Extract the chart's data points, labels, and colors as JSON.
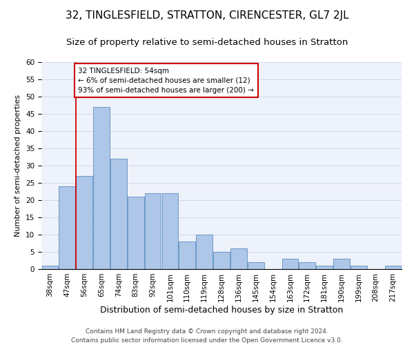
{
  "title": "32, TINGLESFIELD, STRATTON, CIRENCESTER, GL7 2JL",
  "subtitle": "Size of property relative to semi-detached houses in Stratton",
  "xlabel": "Distribution of semi-detached houses by size in Stratton",
  "ylabel": "Number of semi-detached properties",
  "categories": [
    "38sqm",
    "47sqm",
    "56sqm",
    "65sqm",
    "74sqm",
    "83sqm",
    "92sqm",
    "101sqm",
    "110sqm",
    "119sqm",
    "128sqm",
    "136sqm",
    "145sqm",
    "154sqm",
    "163sqm",
    "172sqm",
    "181sqm",
    "190sqm",
    "199sqm",
    "208sqm",
    "217sqm"
  ],
  "values": [
    1,
    24,
    27,
    47,
    32,
    21,
    22,
    22,
    8,
    10,
    5,
    6,
    2,
    0,
    3,
    2,
    1,
    3,
    1,
    0,
    1
  ],
  "bar_color": "#aec6e8",
  "bar_edge_color": "#5a8fc2",
  "annotation_text": "32 TINGLESFIELD: 54sqm\n← 6% of semi-detached houses are smaller (12)\n93% of semi-detached houses are larger (200) →",
  "annotation_box_color": "#ffffff",
  "annotation_box_edge": "#cc0000",
  "ylim": [
    0,
    60
  ],
  "yticks": [
    0,
    5,
    10,
    15,
    20,
    25,
    30,
    35,
    40,
    45,
    50,
    55,
    60
  ],
  "grid_color": "#d0d8e8",
  "bg_color": "#eef2fa",
  "footer": "Contains HM Land Registry data © Crown copyright and database right 2024.\nContains public sector information licensed under the Open Government Licence v3.0.",
  "red_line_color": "#cc0000",
  "title_fontsize": 11,
  "subtitle_fontsize": 9.5,
  "xlabel_fontsize": 9,
  "ylabel_fontsize": 8,
  "tick_fontsize": 7.5,
  "annotation_fontsize": 7.5,
  "footer_fontsize": 6.5
}
